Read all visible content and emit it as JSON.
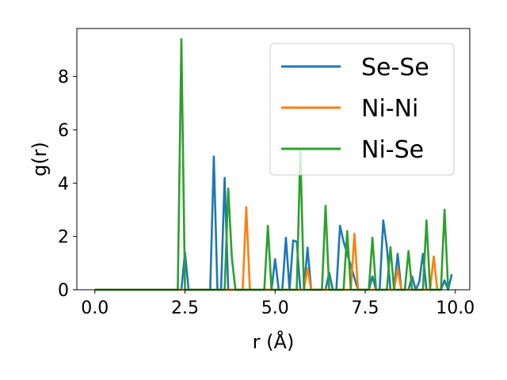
{
  "chart_data": {
    "type": "line",
    "xlabel": "r (Å)",
    "ylabel": "g(r)",
    "xlim": [
      -0.5,
      10.4
    ],
    "ylim": [
      0,
      9.8
    ],
    "xticks": [
      0.0,
      2.5,
      5.0,
      7.5,
      10.0
    ],
    "xtick_labels": [
      "0.0",
      "2.5",
      "5.0",
      "7.5",
      "10.0"
    ],
    "yticks": [
      0,
      2,
      4,
      6,
      8
    ],
    "ytick_labels": [
      "0",
      "2",
      "4",
      "6",
      "8"
    ],
    "grid": false,
    "legend_position": "top-right",
    "series": [
      {
        "name": "Se-Se",
        "color": "#1f77b4",
        "x": [
          0.0,
          2.4,
          2.5,
          2.6,
          2.7,
          3.2,
          3.3,
          3.4,
          3.5,
          3.6,
          3.7,
          3.8,
          4.9,
          5.0,
          5.1,
          5.2,
          5.3,
          5.4,
          5.5,
          5.6,
          5.7,
          5.8,
          5.9,
          6.0,
          6.4,
          6.5,
          6.6,
          6.7,
          6.8,
          6.9,
          7.3,
          7.6,
          7.7,
          7.8,
          7.9,
          8.0,
          8.1,
          8.2,
          8.3,
          8.4,
          8.5,
          8.6,
          8.7,
          8.8,
          8.9,
          9.0,
          9.1,
          9.2,
          9.3,
          9.6,
          9.7,
          9.8,
          9.9
        ],
        "y": [
          0,
          0,
          1.4,
          0,
          0,
          0,
          5.0,
          0,
          0,
          4.2,
          0,
          0,
          0,
          1.15,
          0,
          0,
          1.95,
          0,
          1.85,
          1.8,
          0,
          0,
          1.58,
          0,
          0,
          0.65,
          0,
          0,
          2.4,
          1.8,
          0,
          0,
          0.5,
          0,
          0,
          2.6,
          1.6,
          0,
          0,
          1.35,
          0,
          0,
          0,
          0.5,
          0,
          0.3,
          1.35,
          0,
          0,
          0,
          0.35,
          0,
          0.58
        ]
      },
      {
        "name": "Ni-Ni",
        "color": "#ff7f0e",
        "x": [
          0.0,
          4.1,
          4.2,
          4.3,
          5.8,
          5.9,
          6.0,
          7.1,
          7.2,
          7.3,
          8.3,
          8.4,
          8.5,
          9.3,
          9.4,
          9.5
        ],
        "y": [
          0,
          0,
          3.1,
          0,
          0,
          0.8,
          0,
          0,
          2.1,
          0,
          0,
          0.8,
          0,
          0,
          1.25,
          0
        ]
      },
      {
        "name": "Ni-Se",
        "color": "#2ca02c",
        "x": [
          0.0,
          2.3,
          2.4,
          2.5,
          2.6,
          3.6,
          3.7,
          3.8,
          3.9,
          4.0,
          4.7,
          4.8,
          4.9,
          5.6,
          5.7,
          5.8,
          6.3,
          6.4,
          6.5,
          6.9,
          7.0,
          7.1,
          7.2,
          7.6,
          7.7,
          7.8,
          8.1,
          8.2,
          8.3,
          8.6,
          8.7,
          8.8,
          9.1,
          9.2,
          9.3,
          9.5,
          9.6,
          9.7,
          9.8
        ],
        "y": [
          0,
          0,
          9.4,
          0,
          0,
          0,
          3.8,
          1.2,
          0,
          0,
          0,
          2.4,
          0,
          0,
          5.2,
          0,
          0,
          3.15,
          0,
          0,
          2.2,
          0,
          0,
          0,
          1.95,
          0,
          0,
          1.6,
          0,
          0,
          1.45,
          0,
          0,
          2.6,
          0,
          0,
          0,
          3.0,
          0
        ]
      }
    ]
  }
}
